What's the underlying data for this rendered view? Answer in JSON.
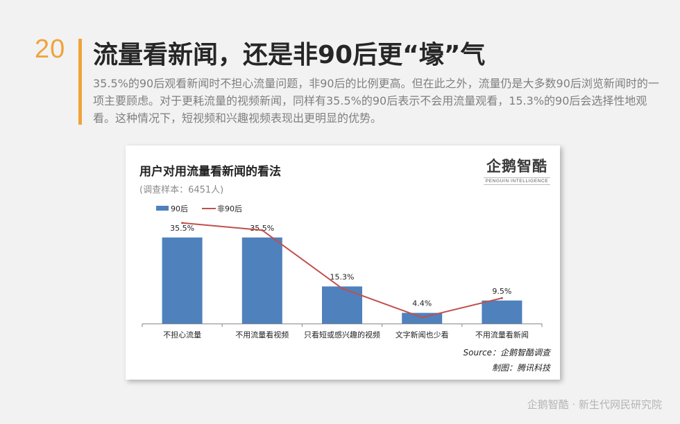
{
  "slide": {
    "number": "20",
    "title": "流量看新闻，还是非90后更“壕”气",
    "description": "35.5%的90后观看新闻时不担心流量问题，非90后的比例更高。但在此之外，流量仍是大多数90后浏览新闻时的一项主要顾虑。对于更耗流量的视频新闻，同样有35.5%的90后表示不会用流量观看，15.3%的90后会选择性地观看。这种情况下，短视频和兴趣视频表现出更明显的优势。"
  },
  "logo": {
    "main": "企鹅智酷",
    "sub": "PENGUIN INTELLIGENCE"
  },
  "source": "Source：企鹅智酷调查",
  "credit": "制图：腾讯科技",
  "footer": "企鹅智酷 · 新生代网民研究院",
  "colors": {
    "accent": "#f0a33a",
    "bar": "#4f81bd",
    "line": "#c0504d"
  },
  "chart_data": {
    "type": "bar",
    "title": "用户对用流量看新闻的看法",
    "subtitle": "(调查样本：6451人)",
    "categories": [
      "不担心流量",
      "不用流量看视频",
      "只看短或感兴趣的视频",
      "文字新闻也少看",
      "不用流量看新闻"
    ],
    "series": [
      {
        "name": "90后",
        "type": "bar",
        "values": [
          35.5,
          35.5,
          15.3,
          4.4,
          9.5
        ],
        "labels": [
          "35.5%",
          "35.5%",
          "15.3%",
          "4.4%",
          "9.5%"
        ]
      },
      {
        "name": "非90后",
        "type": "line",
        "values": [
          41.5,
          38.5,
          14.5,
          2.5,
          10.5
        ]
      }
    ],
    "ylim": [
      0,
      50
    ],
    "legend": "top-left",
    "grid": false
  }
}
